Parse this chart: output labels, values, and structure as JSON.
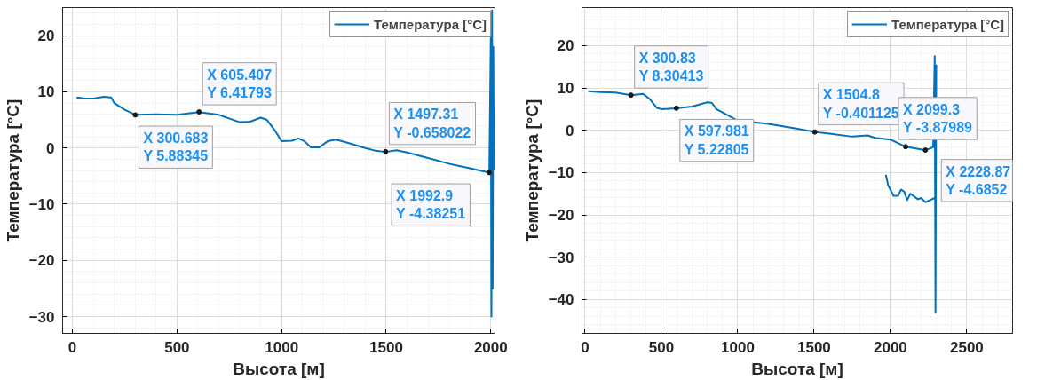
{
  "chart_data": [
    {
      "type": "line",
      "xlabel": "Высота [м]",
      "ylabel": "Температура [°C]",
      "xlim": [
        -47,
        2020
      ],
      "ylim": [
        -33,
        25
      ],
      "xticks": [
        0,
        500,
        1000,
        1500,
        2000
      ],
      "yticks": [
        -30,
        -20,
        -10,
        0,
        10,
        20
      ],
      "grid": true,
      "legend": "top right",
      "series": [
        {
          "name": "Температура [°C]",
          "color": "#0072bd",
          "x": [
            20,
            60,
            100,
            150,
            185,
            200,
            250,
            300.683,
            400,
            500,
            605.407,
            700,
            800,
            850,
            900,
            930,
            970,
            1000,
            1050,
            1080,
            1110,
            1140,
            1180,
            1220,
            1260,
            1300,
            1400,
            1450,
            1497.31,
            1550,
            1600,
            1700,
            1800,
            1900,
            1992.9,
            2000,
            2003,
            2006,
            2009,
            2012,
            2015
          ],
          "values": [
            9,
            8.8,
            8.8,
            9.1,
            9,
            8,
            6.8,
            5.9,
            6,
            5.9,
            6.4,
            5.9,
            4.6,
            4.7,
            5.4,
            5,
            3,
            1.2,
            1.3,
            1.7,
            1.2,
            0.1,
            0.1,
            1.2,
            1.5,
            1.1,
            0,
            -0.5,
            -0.7,
            -0.4,
            -0.8,
            -1.8,
            -2.8,
            -3.6,
            -4.4,
            20,
            -30,
            24.5,
            -25,
            18,
            -4
          ]
        }
      ],
      "annotations": [
        {
          "text": "X 300.683\nY 5.88345",
          "x": 300.683,
          "y": 5.88345
        },
        {
          "text": "X 605.407\nY 6.41793",
          "x": 605.407,
          "y": 6.41793
        },
        {
          "text": "X 1497.31\nY -0.658022",
          "x": 1497.31,
          "y": -0.658022
        },
        {
          "text": "X 1992.9\nY -4.38251",
          "x": 1992.9,
          "y": -4.38251
        }
      ]
    },
    {
      "type": "line",
      "xlabel": "Высота [м]",
      "ylabel": "Температура [°C]",
      "xlim": [
        -20,
        2800
      ],
      "ylim": [
        -48,
        29
      ],
      "xticks": [
        0,
        500,
        1000,
        1500,
        2000,
        2500
      ],
      "yticks": [
        -40,
        -30,
        -20,
        -10,
        0,
        10,
        20
      ],
      "grid": true,
      "legend": "top right",
      "series": [
        {
          "name": "Температура [°C]",
          "color": "#0072bd",
          "x": [
            20,
            100,
            200,
            300.83,
            380,
            420,
            470,
            500,
            597.981,
            700,
            800,
            830,
            860,
            1000,
            1200,
            1400,
            1504.8,
            1600,
            1750,
            1850,
            1900,
            2000,
            2099.3,
            2200,
            2228.87,
            2280,
            2290,
            2295,
            2300
          ],
          "values": [
            9.2,
            9,
            8.9,
            8.3,
            8.6,
            7.5,
            5.3,
            5,
            5.2,
            5.6,
            6.6,
            6.5,
            5,
            2.3,
            1.5,
            0.3,
            -0.4,
            -0.8,
            -1.5,
            -1.2,
            -1.8,
            -2.2,
            -3.9,
            -4.5,
            -4.7,
            -4,
            17.5,
            -43,
            15.5
          ]
        },
        {
          "color": "#0072bd",
          "x": [
            1970,
            1985,
            2000,
            2020,
            2050,
            2070,
            2090,
            2110,
            2130,
            2150,
            2180,
            2200,
            2230,
            2260,
            2290
          ],
          "values": [
            -10.5,
            -13,
            -14,
            -15.5,
            -15.5,
            -14,
            -14.5,
            -16.5,
            -15,
            -15.5,
            -16.3,
            -16,
            -17,
            -16.5,
            -16
          ]
        }
      ],
      "annotations": [
        {
          "text": "X 300.83\nY 8.30413",
          "x": 300.83,
          "y": 8.30413
        },
        {
          "text": "X 597.981\nY 5.22805",
          "x": 597.981,
          "y": 5.22805
        },
        {
          "text": "X 1504.8\nY -0.401125",
          "x": 1504.8,
          "y": -0.401125
        },
        {
          "text": "X 2099.3\nY -3.87989",
          "x": 2099.3,
          "y": -3.87989
        },
        {
          "text": "X 2228.87\nY -4.6852",
          "x": 2228.87,
          "y": -4.6852
        }
      ]
    }
  ]
}
